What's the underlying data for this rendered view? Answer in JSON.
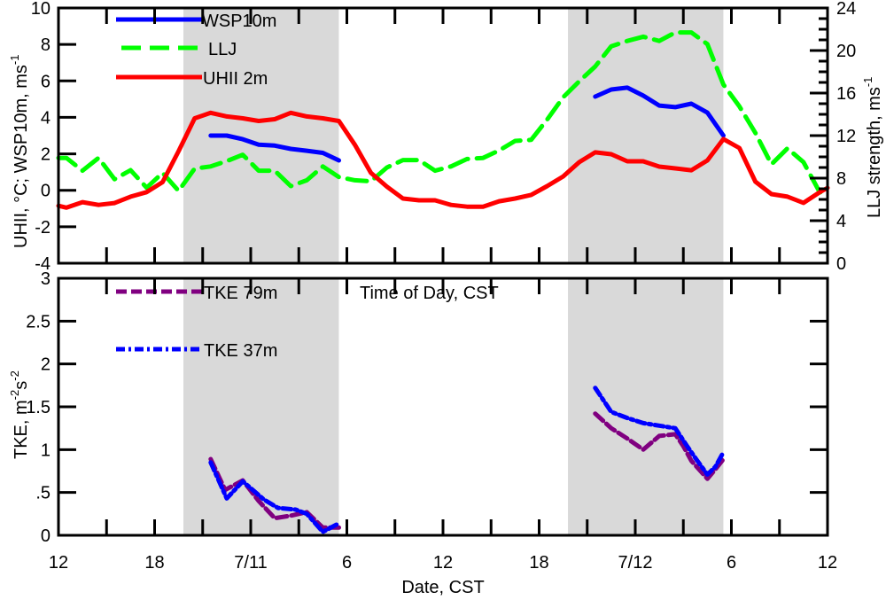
{
  "chart_data": [
    {
      "type": "line",
      "panel": "top",
      "ylabel": "UHII, °C; WSP10m, ms",
      "ylabel_sup": "-1",
      "y2label": "LLJ strength, ms",
      "y2label_sup": "-1",
      "xlim_hours": [
        0,
        48
      ],
      "ylim": [
        -4,
        10
      ],
      "y2lim": [
        0,
        24
      ],
      "yticks": [
        -4,
        -2,
        0,
        2,
        4,
        6,
        8,
        10
      ],
      "ytick_labels": [
        "-4",
        "-2",
        "0",
        "2",
        "4",
        "6",
        "8",
        "10"
      ],
      "y2ticks": [
        0,
        4,
        8,
        12,
        16,
        20,
        24
      ],
      "y2tick_labels": [
        "0",
        "4",
        "8",
        "12",
        "16",
        "20",
        "24"
      ],
      "night_shading_hours": [
        [
          7.8,
          17.5
        ],
        [
          31.8,
          41.5
        ]
      ],
      "legend_placement": "top-left",
      "series": [
        {
          "name": "WSP10m",
          "axis": "left",
          "color": "#0000ff",
          "style": "solid",
          "segments": [
            {
              "x": [
                9.5,
                10.5,
                11.5,
                12.5,
                13.5,
                14.5,
                15.5,
                16.5,
                17.5
              ],
              "y": [
                3.0,
                3.0,
                2.8,
                2.5,
                2.45,
                2.27,
                2.17,
                2.05,
                1.64
              ]
            },
            {
              "x": [
                33.5,
                34.5,
                35.5,
                36.5,
                37.5,
                38.5,
                39.5,
                40.5,
                41.5
              ],
              "y": [
                5.14,
                5.53,
                5.63,
                5.19,
                4.65,
                4.56,
                4.75,
                4.26,
                3.0
              ]
            }
          ]
        },
        {
          "name": "LLJ",
          "axis": "right",
          "color": "#00ff00",
          "style": "dashed",
          "segments": [
            {
              "x": [
                0,
                0.5,
                1.5,
                2.5,
                3.5,
                4.5,
                5.5,
                6.5,
                7.5,
                8.5,
                9.5,
                10.5,
                11.5,
                12.5,
                13.5,
                14.5,
                15.5,
                16.5,
                17.5,
                18.5,
                19.5,
                20.5,
                21.5,
                22.5,
                23.5,
                24.5,
                25.5,
                26.5,
                27.5,
                28.5,
                29.5,
                30.5,
                31.5,
                32.5,
                33.5,
                34.5,
                35.5,
                36.5,
                37.5,
                38.5,
                39.5,
                40.5,
                41.5,
                42.5,
                43.5,
                44.5,
                45.5,
                46.5,
                47.5,
                48
              ],
              "y": [
                9.9,
                9.9,
                8.7,
                9.9,
                7.9,
                8.75,
                7.1,
                8.5,
                6.8,
                8.9,
                9.1,
                9.6,
                10.2,
                8.7,
                8.7,
                7.25,
                7.8,
                9.1,
                8.1,
                7.8,
                7.7,
                9.0,
                9.7,
                9.7,
                8.7,
                9.1,
                9.8,
                9.9,
                10.6,
                11.5,
                11.6,
                13.5,
                15.6,
                17.1,
                18.5,
                20.4,
                20.9,
                21.3,
                20.9,
                21.7,
                21.7,
                20.6,
                16.8,
                14.75,
                12.25,
                9.3,
                10.8,
                9.5,
                6.7,
                6.4
              ]
            }
          ]
        },
        {
          "name": "UHII 2m",
          "axis": "left",
          "color": "#ff0000",
          "style": "solid",
          "segments": [
            {
              "x": [
                0,
                0.5,
                1.5,
                2.5,
                3.5,
                4.5,
                5.5,
                6.5,
                7.5,
                8.5,
                9.5,
                10.5,
                11.5,
                12.5,
                13.5,
                14.5,
                15.5,
                16.5,
                17.5,
                18.5,
                19.5,
                20.5,
                21.5,
                22.5,
                23.5,
                24.5,
                25.5,
                26.5,
                27.5,
                28.5,
                29.5,
                30.5,
                31.5,
                32.5,
                33.5,
                34.5,
                35.5,
                36.5,
                37.5,
                38.5,
                39.5,
                40.5,
                41.5,
                42.5,
                43.5,
                44.5,
                45.5,
                46.5,
                47.5,
                48
              ],
              "y": [
                -0.85,
                -0.95,
                -0.65,
                -0.8,
                -0.7,
                -0.35,
                -0.1,
                0.45,
                2.15,
                3.95,
                4.25,
                4.05,
                3.95,
                3.8,
                3.9,
                4.25,
                4.05,
                3.95,
                3.8,
                2.5,
                0.96,
                0.2,
                -0.45,
                -0.55,
                -0.55,
                -0.8,
                -0.9,
                -0.9,
                -0.6,
                -0.45,
                -0.25,
                0.23,
                0.76,
                1.54,
                2.08,
                1.98,
                1.59,
                1.59,
                1.3,
                1.2,
                1.1,
                1.64,
                2.81,
                2.32,
                0.47,
                -0.21,
                -0.35,
                -0.69,
                -0.11,
                0.13
              ]
            }
          ]
        }
      ]
    },
    {
      "type": "line",
      "panel": "bottom",
      "ylabel": "TKE, m",
      "ylabel_sup1": "-2",
      "ylabel_mid": "s",
      "ylabel_sup2": "-2",
      "xlabel": "Date, CST",
      "annotation": "Time of Day, CST",
      "xlim_hours": [
        0,
        48
      ],
      "ylim": [
        0,
        3
      ],
      "yticks": [
        0,
        0.5,
        1,
        1.5,
        2,
        2.5,
        3
      ],
      "ytick_labels": [
        "0",
        ".5",
        "1",
        "1.5",
        "2",
        "2.5",
        "3"
      ],
      "xticks_hours": [
        0,
        6,
        12,
        18,
        24,
        30,
        36,
        42,
        48
      ],
      "xtick_labels": [
        "12",
        "18",
        "7/11",
        "6",
        "12",
        "18",
        "7/12",
        "6",
        "12"
      ],
      "night_shading_hours": [
        [
          7.8,
          17.5
        ],
        [
          31.8,
          41.5
        ]
      ],
      "legend_placement": "top-left",
      "series": [
        {
          "name": "TKE 79m",
          "color": "#800080",
          "style": "dashed",
          "segments": [
            {
              "x": [
                9.5,
                10.4,
                11.5,
                12.5,
                13.5,
                14.5,
                15.5,
                16.5,
                17.5
              ],
              "y": [
                0.89,
                0.53,
                0.64,
                0.4,
                0.2,
                0.23,
                0.27,
                0.09,
                0.09
              ]
            },
            {
              "x": [
                33.5,
                34.5,
                35.5,
                36.5,
                37.5,
                38.5,
                39.0,
                39.5,
                40.5,
                41.0,
                41.5
              ],
              "y": [
                1.42,
                1.25,
                1.13,
                1.0,
                1.16,
                1.18,
                1.04,
                0.87,
                0.66,
                0.77,
                0.89
              ]
            }
          ]
        },
        {
          "name": "TKE 37m",
          "color": "#0000ff",
          "style": "dashdot",
          "segments": [
            {
              "x": [
                9.5,
                10.5,
                11.5,
                12.8,
                13.7,
                14.8,
                15.5,
                16.5,
                17.5
              ],
              "y": [
                0.85,
                0.43,
                0.63,
                0.42,
                0.32,
                0.3,
                0.25,
                0.04,
                0.14
              ]
            },
            {
              "x": [
                33.5,
                34.5,
                35.5,
                36.5,
                37.5,
                38.5,
                39.2,
                39.8,
                40.5,
                41.0,
                41.5
              ],
              "y": [
                1.72,
                1.44,
                1.37,
                1.31,
                1.28,
                1.25,
                1.05,
                0.89,
                0.71,
                0.8,
                0.97
              ]
            }
          ]
        }
      ]
    }
  ],
  "colors": {
    "shading": "#d9d9d9",
    "axis": "#000000"
  }
}
